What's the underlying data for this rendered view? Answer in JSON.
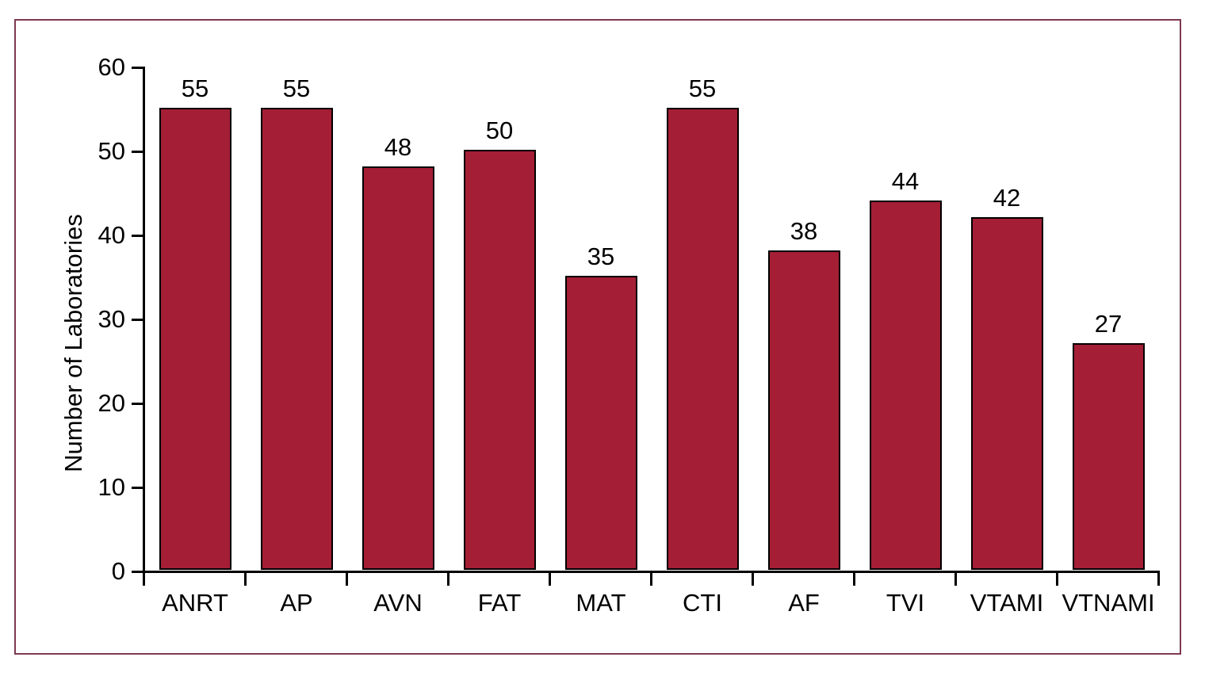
{
  "chart_data": {
    "type": "bar",
    "categories": [
      "ANRT",
      "AP",
      "AVN",
      "FAT",
      "MAT",
      "CTI",
      "AF",
      "TVI",
      "VTAMI",
      "VTNAMI"
    ],
    "values": [
      55,
      55,
      48,
      50,
      35,
      55,
      38,
      44,
      42,
      27
    ],
    "title": "",
    "xlabel": "",
    "ylabel": "Number of Laboratories",
    "ylim": [
      0,
      60
    ],
    "yticks": [
      0,
      10,
      20,
      30,
      40,
      50,
      60
    ],
    "grid": false,
    "legend": "none",
    "value_labels_shown": true,
    "colors": {
      "bar_fill": "#a41e35",
      "bar_border": "#000000",
      "axis": "#000000",
      "frame_border": "#7e3a50",
      "text": "#000000",
      "background": "#ffffff"
    }
  }
}
